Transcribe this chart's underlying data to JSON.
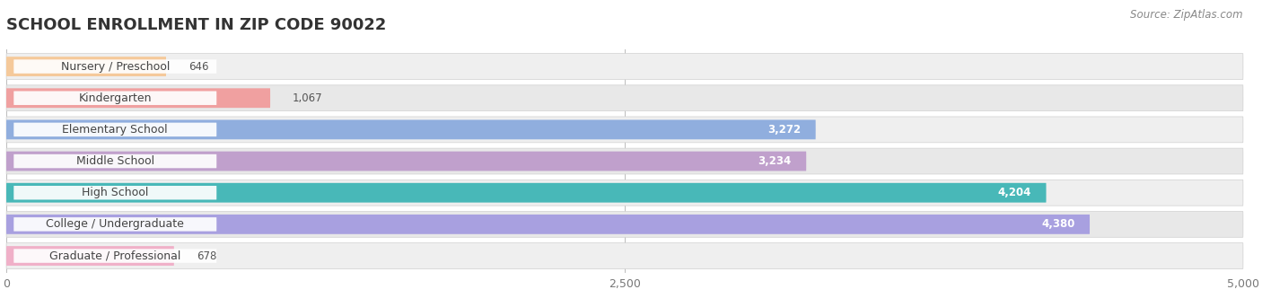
{
  "title": "SCHOOL ENROLLMENT IN ZIP CODE 90022",
  "source": "Source: ZipAtlas.com",
  "categories": [
    "Nursery / Preschool",
    "Kindergarten",
    "Elementary School",
    "Middle School",
    "High School",
    "College / Undergraduate",
    "Graduate / Professional"
  ],
  "values": [
    646,
    1067,
    3272,
    3234,
    4204,
    4380,
    678
  ],
  "bar_colors": [
    "#f5c99a",
    "#f0a0a0",
    "#90aede",
    "#c0a0cc",
    "#48b8b8",
    "#a8a0e0",
    "#f0b0c8"
  ],
  "row_bg_colors": [
    "#efefef",
    "#e8e8e8",
    "#efefef",
    "#e8e8e8",
    "#efefef",
    "#e8e8e8",
    "#efefef"
  ],
  "xlim": [
    0,
    5000
  ],
  "xticks": [
    0,
    2500,
    5000
  ],
  "xtick_labels": [
    "0",
    "2,500",
    "5,000"
  ],
  "value_labels": [
    "646",
    "1,067",
    "3,272",
    "3,234",
    "4,204",
    "4,380",
    "678"
  ],
  "label_threshold": 2000,
  "title_fontsize": 13,
  "label_fontsize": 9,
  "value_fontsize": 8.5,
  "source_fontsize": 8.5,
  "background_color": "#ffffff"
}
